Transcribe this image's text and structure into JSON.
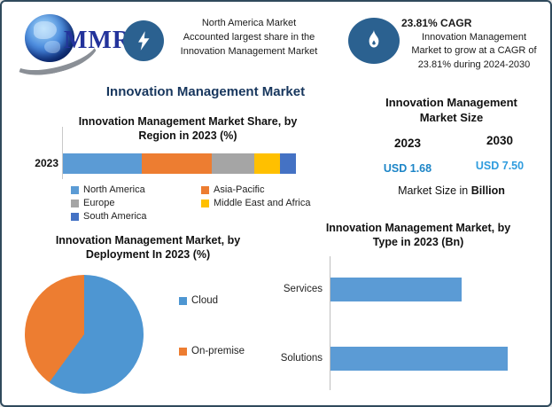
{
  "header": {
    "logo_text": "MMR",
    "highlight_share": {
      "lines": [
        "North America Market",
        "Accounted largest share in the",
        "Innovation Management Market"
      ]
    },
    "highlight_cagr": {
      "title": "23.81% CAGR",
      "lines": [
        "Innovation Management",
        "Market to grow at a CAGR of",
        "23.81% during 2024-2030"
      ]
    }
  },
  "main_title": "Innovation Management Market",
  "market_size_panel": {
    "title_lines": [
      "Innovation Management",
      "Market Size"
    ],
    "year_left": "2023",
    "year_right": "2030",
    "value_left": "USD 1.68",
    "value_right": "USD 7.50",
    "value_left_color": "#1C85C7",
    "value_right_color": "#2F9CDE",
    "footer_normal": "Market Size in ",
    "footer_bold": "Billion"
  },
  "colors": {
    "border": "#2F4A5C",
    "badge_bg": "#2B6190",
    "title_navy": "#17365D",
    "bar_blue": "#5B9BD5"
  },
  "chart_data": [
    {
      "id": "region_share",
      "type": "bar",
      "subtype": "stacked_horizontal",
      "title": "Innovation Management Market Share, by Region in 2023 (%)",
      "title_lines": [
        "Innovation Management Market Share, by",
        "Region in 2023 (%)"
      ],
      "category": "2023",
      "series": [
        {
          "name": "North America",
          "value": 34,
          "color": "#5B9BD5"
        },
        {
          "name": "Asia-Pacific",
          "value": 30,
          "color": "#ED7D31"
        },
        {
          "name": "Europe",
          "value": 18,
          "color": "#A5A5A5"
        },
        {
          "name": "Middle East and Africa",
          "value": 11,
          "color": "#FFC000"
        },
        {
          "name": "South America",
          "value": 7,
          "color": "#4472C4"
        }
      ],
      "legend_position": "bottom",
      "note": "segment values estimated from widths; no data labels shown"
    },
    {
      "id": "deployment",
      "type": "pie",
      "title": "Innovation Management Market, by Deployment In 2023 (%)",
      "title_lines": [
        "Innovation Management Market, by",
        "Deployment In 2023 (%)"
      ],
      "start_angle_deg": 0,
      "slices": [
        {
          "name": "Cloud",
          "value": 60,
          "color": "#4E96D2"
        },
        {
          "name": "On-premise",
          "value": 40,
          "color": "#ED7D31"
        }
      ],
      "legend_position": "right",
      "note": "slice values estimated from angles; no data labels shown"
    },
    {
      "id": "by_type",
      "type": "bar",
      "subtype": "horizontal",
      "title": "Innovation Management Market, by Type in 2023 (Bn)",
      "title_lines": [
        "Innovation Management Market, by",
        "Type in 2023 (Bn)"
      ],
      "categories": [
        "Services",
        "Solutions"
      ],
      "values_relative_pct": [
        74,
        100
      ],
      "color": "#5B9BD5",
      "note": "no axis scale or data labels shown; bar lengths relative"
    }
  ]
}
